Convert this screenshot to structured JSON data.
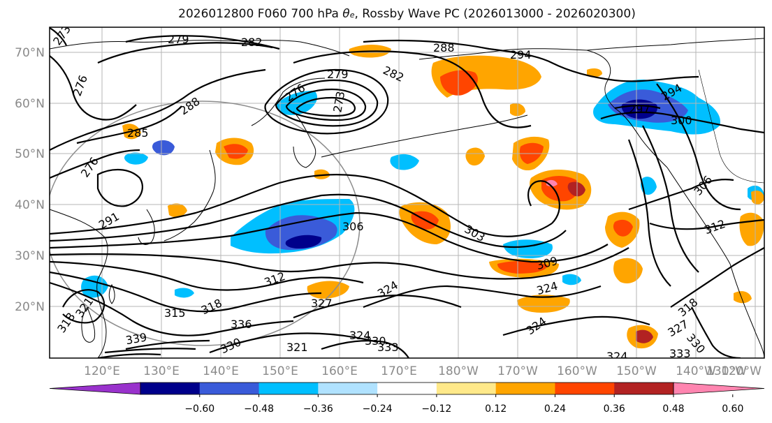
{
  "title": {
    "prefix": "2026012800 F060 700 hPa ",
    "theta": "θ",
    "theta_sub": "e",
    "suffix": ", Rossby Wave PC (2026013000 - 2026020300)"
  },
  "map": {
    "lat_labels": [
      "70°N",
      "60°N",
      "50°N",
      "40°N",
      "30°N",
      "20°N"
    ],
    "lon_labels": [
      "120°E",
      "130°E",
      "140°E",
      "150°E",
      "160°E",
      "170°E",
      "180°W",
      "170°W",
      "160°W",
      "150°W",
      "140°W",
      "130°W",
      "120°W"
    ],
    "contour_labels": [
      "279",
      "282",
      "288",
      "294",
      "273",
      "276",
      "276",
      "288",
      "285",
      "279",
      "282",
      "276",
      "273",
      "294",
      "297",
      "300",
      "306",
      "312",
      "306",
      "303",
      "309",
      "312",
      "315",
      "318",
      "321",
      "324",
      "324",
      "324",
      "327",
      "330",
      "333",
      "336",
      "339",
      "330",
      "324",
      "327",
      "330",
      "333",
      "291",
      "318",
      "321",
      "324",
      "318"
    ]
  },
  "colorbar": {
    "tick_labels": [
      "−0.60",
      "−0.48",
      "−0.36",
      "−0.24",
      "−0.12",
      "0.12",
      "0.24",
      "0.36",
      "0.48",
      "0.60"
    ],
    "segment_colors": [
      "#9932cc",
      "#00008b",
      "#3a5bd9",
      "#00bfff",
      "#b0e2ff",
      "#ffffff",
      "#ffe98a",
      "#ffa500",
      "#ff4500",
      "#b22222",
      "#ff85b0"
    ],
    "extend": "both"
  }
}
